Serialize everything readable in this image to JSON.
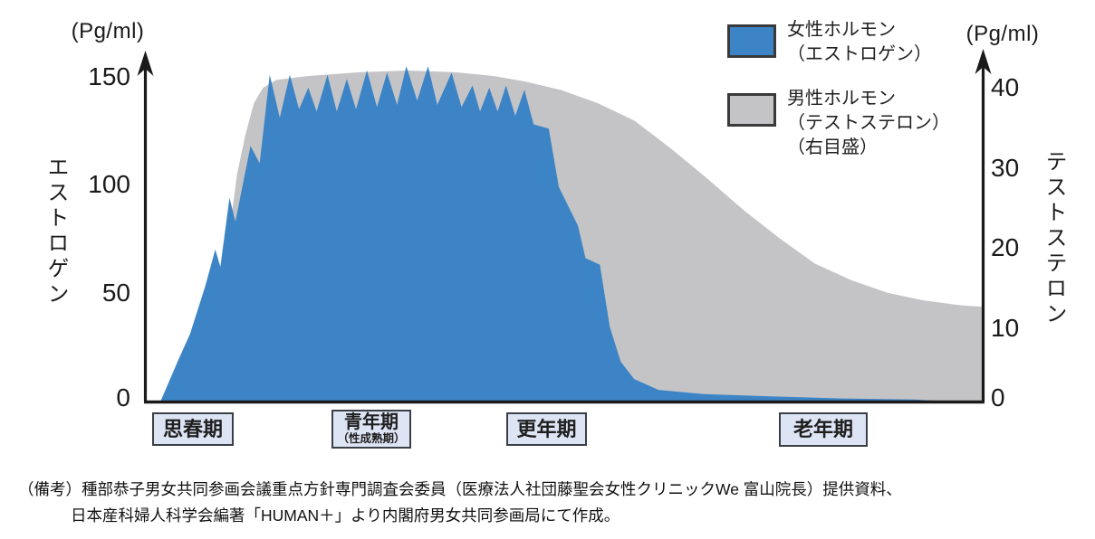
{
  "chart_data": {
    "type": "area",
    "title": "",
    "description": "Female hormone (estrogen, left axis) and male hormone (testosterone, right axis) levels across life stages",
    "axes": {
      "left": {
        "unit": "(Pg/ml)",
        "title": "エストロゲン",
        "ticks": [
          "150",
          "100",
          "50",
          "0"
        ],
        "range": [
          0,
          150
        ]
      },
      "right": {
        "unit": "(Pg/ml)",
        "title": "テストステロン",
        "ticks": [
          "40",
          "30",
          "20",
          "10",
          "0"
        ],
        "range": [
          0,
          40
        ]
      }
    },
    "stages": [
      {
        "label": "思春期",
        "sub": ""
      },
      {
        "label": "青年期",
        "sub": "（性成熟期）"
      },
      {
        "label": "更年期",
        "sub": ""
      },
      {
        "label": "老年期",
        "sub": ""
      }
    ],
    "series": [
      {
        "name": "女性ホルモン（エストロゲン）",
        "axis": "left",
        "color": "#3d84c6",
        "points": [
          [
            1.9,
            0
          ],
          [
            4.0,
            19
          ],
          [
            5.4,
            31
          ],
          [
            7.2,
            53
          ],
          [
            8.4,
            70
          ],
          [
            9.0,
            62
          ],
          [
            10.1,
            94
          ],
          [
            10.8,
            83
          ],
          [
            12.6,
            118
          ],
          [
            13.7,
            110
          ],
          [
            14.9,
            151
          ],
          [
            16.1,
            131
          ],
          [
            17.3,
            151
          ],
          [
            18.4,
            135
          ],
          [
            19.5,
            145
          ],
          [
            20.5,
            134
          ],
          [
            21.8,
            151
          ],
          [
            22.9,
            134
          ],
          [
            24.1,
            149
          ],
          [
            25.2,
            135
          ],
          [
            26.5,
            153
          ],
          [
            27.7,
            136
          ],
          [
            28.9,
            152
          ],
          [
            30.1,
            137
          ],
          [
            31.2,
            155
          ],
          [
            32.5,
            139
          ],
          [
            33.8,
            155
          ],
          [
            34.9,
            137
          ],
          [
            36.6,
            152
          ],
          [
            37.8,
            136
          ],
          [
            39.1,
            146
          ],
          [
            40.0,
            134
          ],
          [
            41.1,
            145
          ],
          [
            42.1,
            134
          ],
          [
            43.1,
            146
          ],
          [
            44.2,
            132
          ],
          [
            45.3,
            144
          ],
          [
            46.4,
            128
          ],
          [
            48.2,
            126
          ],
          [
            49.4,
            99
          ],
          [
            51.7,
            81
          ],
          [
            52.6,
            66
          ],
          [
            54.3,
            63
          ],
          [
            55.5,
            34
          ],
          [
            56.8,
            18
          ],
          [
            58.4,
            10
          ],
          [
            61.3,
            5
          ],
          [
            66.7,
            3
          ],
          [
            74.6,
            2
          ],
          [
            83.2,
            1
          ],
          [
            91.9,
            0.5
          ],
          [
            94.1,
            0
          ]
        ]
      },
      {
        "name": "男性ホルモン（テストステロン）（右目盛）",
        "axis": "right",
        "color": "#c4c4c6",
        "points": [
          [
            4.3,
            0
          ],
          [
            7.0,
            5
          ],
          [
            8.6,
            10
          ],
          [
            9.9,
            20
          ],
          [
            11.0,
            29
          ],
          [
            12.0,
            34
          ],
          [
            13.0,
            38
          ],
          [
            14.1,
            40
          ],
          [
            15.7,
            41
          ],
          [
            19.5,
            41.5
          ],
          [
            25.9,
            42
          ],
          [
            31.4,
            42.2
          ],
          [
            36.8,
            42
          ],
          [
            41.6,
            41.5
          ],
          [
            45.4,
            40.8
          ],
          [
            49.7,
            39.7
          ],
          [
            54.1,
            38
          ],
          [
            58.4,
            35.8
          ],
          [
            62.7,
            32.3
          ],
          [
            67.0,
            28.5
          ],
          [
            71.4,
            24.4
          ],
          [
            75.7,
            20.8
          ],
          [
            80.0,
            17.5
          ],
          [
            84.3,
            15.4
          ],
          [
            88.6,
            13.8
          ],
          [
            93.0,
            12.8
          ],
          [
            97.3,
            12.2
          ],
          [
            100,
            12
          ]
        ]
      }
    ],
    "layout_hints": {
      "grid": false,
      "legend_position": "top-right",
      "x_axis": "life stages (no numeric scale)"
    }
  },
  "legend": {
    "items": [
      {
        "lines": [
          "女性ホルモン",
          "（エストロゲン）"
        ],
        "color": "#3d84c6"
      },
      {
        "lines": [
          "男性ホルモン",
          "（テストステロン）",
          "（右目盛）"
        ],
        "color": "#c4c4c6"
      }
    ]
  },
  "footnote": {
    "line1": "（備考）種部恭子男女共同参画会議重点方針専門調査会委員（医療法人社団藤聖会女性クリニックWe 富山院長）提供資料、",
    "line2": "日本産科婦人科学会編著「HUMAN＋」より内閣府男女共同参画局にて作成。"
  },
  "colors": {
    "estrogen_fill": "#3d84c6",
    "testosterone_fill": "#c4c4c6",
    "axis": "#1a1a1a",
    "stage_box_bg": "#dde4f4",
    "stage_box_border": "#3a3f47"
  }
}
